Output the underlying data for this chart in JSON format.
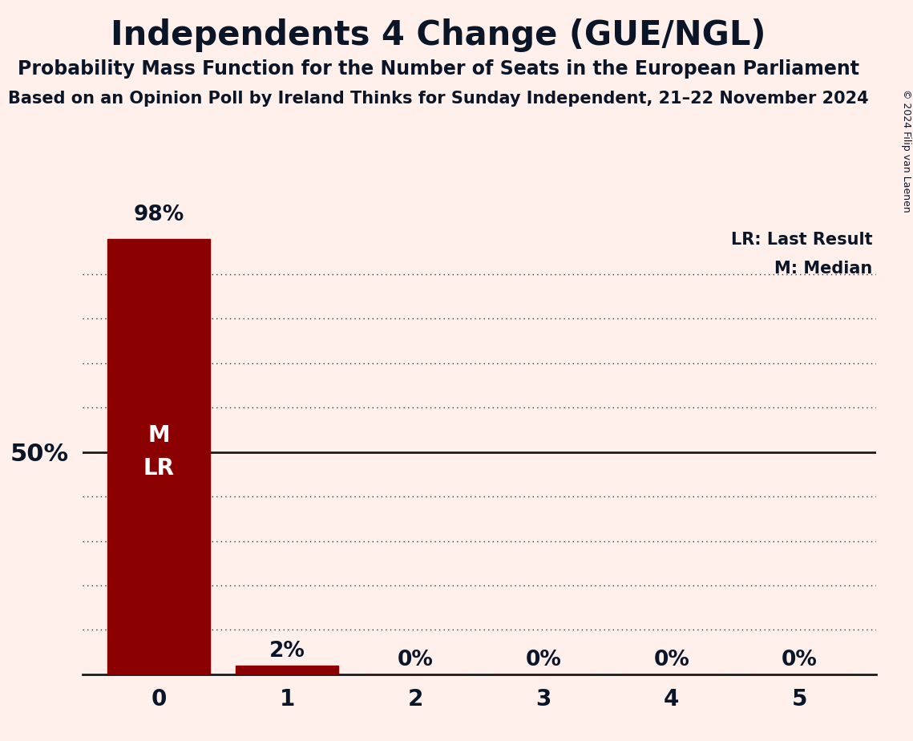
{
  "title": "Independents 4 Change (GUE/NGL)",
  "subtitle": "Probability Mass Function for the Number of Seats in the European Parliament",
  "source": "Based on an Opinion Poll by Ireland Thinks for Sunday Independent, 21–22 November 2024",
  "copyright": "© 2024 Filip van Laenen",
  "seats": [
    0,
    1,
    2,
    3,
    4,
    5
  ],
  "probabilities": [
    0.98,
    0.02,
    0.0,
    0.0,
    0.0,
    0.0
  ],
  "bar_color": "#8B0000",
  "background_color": "#FFF0EB",
  "median": 0,
  "last_result": 0,
  "ylabel_50": "50%",
  "legend_lr": "LR: Last Result",
  "legend_m": "M: Median",
  "title_fontsize": 30,
  "subtitle_fontsize": 17,
  "source_fontsize": 15,
  "bar_label_fontsize": 19,
  "axis_fontsize": 20,
  "ylabel_fontsize": 22,
  "legend_fontsize": 15,
  "inside_label_fontsize": 20,
  "copyright_fontsize": 9,
  "text_color": "#0a1628"
}
